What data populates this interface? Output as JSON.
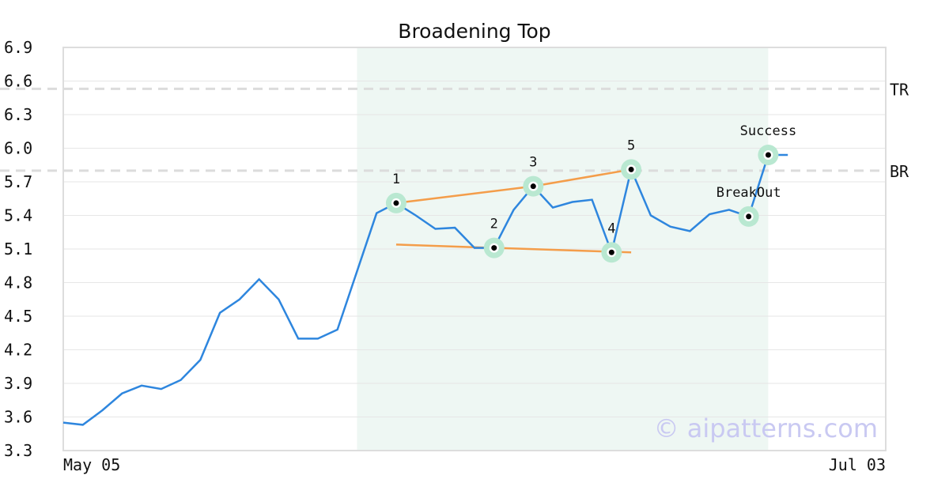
{
  "chart_data": {
    "type": "line",
    "title": "Broadening Top",
    "xlabel": "",
    "ylabel": "",
    "x_tick_labels": [
      "May 05",
      "Jul 03"
    ],
    "y_ticks": [
      3.3,
      3.6,
      3.9,
      4.2,
      4.5,
      4.8,
      5.1,
      5.4,
      5.7,
      6.0,
      6.3,
      6.6,
      6.9
    ],
    "y_tick_labels": [
      "3.3",
      "3.6",
      "3.9",
      "4.2",
      "4.5",
      "4.8",
      "5.1",
      "5.4",
      "5.7",
      "6.0",
      "6.3",
      "6.6",
      "6.9"
    ],
    "ylim": [
      3.3,
      6.9
    ],
    "grid": true,
    "n_points": 43,
    "series": [
      {
        "color": "#2e86de",
        "values": [
          3.55,
          3.53,
          3.66,
          3.81,
          3.88,
          3.85,
          3.93,
          4.11,
          4.53,
          4.65,
          4.83,
          4.65,
          4.3,
          4.3,
          4.38,
          4.9,
          5.42,
          5.51,
          5.4,
          5.28,
          5.29,
          5.11,
          5.11,
          5.45,
          5.66,
          5.47,
          5.52,
          5.54,
          5.07,
          5.81,
          5.4,
          5.3,
          5.26,
          5.41,
          5.45,
          5.39,
          5.94,
          5.94
        ]
      }
    ],
    "highlight_region": {
      "start_index": 15,
      "end_index": 36,
      "color": "#eef7f3"
    },
    "levels": [
      {
        "label": "TR",
        "value": 6.53
      },
      {
        "label": "BR",
        "value": 5.8
      }
    ],
    "trendlines": [
      {
        "color": "#f49d4a",
        "points": [
          [
            17,
            5.51
          ],
          [
            24,
            5.66
          ],
          [
            29,
            5.81
          ]
        ]
      },
      {
        "color": "#f49d4a",
        "points": [
          [
            17,
            5.14
          ],
          [
            22,
            5.11
          ],
          [
            29,
            5.07
          ]
        ]
      }
    ],
    "markers": [
      {
        "label": "1",
        "index": 17,
        "value": 5.51
      },
      {
        "label": "2",
        "index": 22,
        "value": 5.11
      },
      {
        "label": "3",
        "index": 24,
        "value": 5.66
      },
      {
        "label": "4",
        "index": 28,
        "value": 5.07
      },
      {
        "label": "5",
        "index": 29,
        "value": 5.81
      },
      {
        "label": "BreakOut",
        "index": 35,
        "value": 5.39
      },
      {
        "label": "Success",
        "index": 36,
        "value": 5.94
      }
    ],
    "marker_color": "#b9e8d1"
  },
  "watermark": "© aipatterns.com"
}
